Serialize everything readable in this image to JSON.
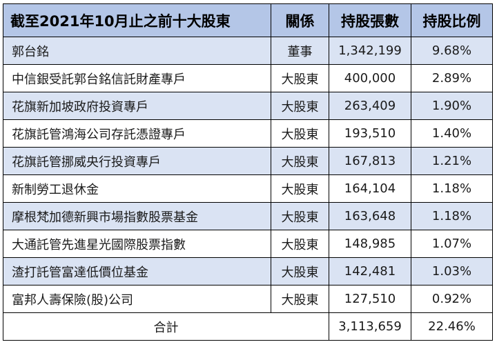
{
  "table": {
    "headers": {
      "name": "截至2021年10月止之前十大股東",
      "relation": "關係",
      "shares": "持股張數",
      "ratio": "持股比例"
    },
    "rows": [
      {
        "name": "郭台銘",
        "relation": "董事",
        "shares": "1,342,199",
        "ratio": "9.68%"
      },
      {
        "name": "中信銀受託郭台銘信託財產專戶",
        "relation": "大股東",
        "shares": "400,000",
        "ratio": "2.89%"
      },
      {
        "name": "花旗新加坡政府投資專戶",
        "relation": "大股東",
        "shares": "263,409",
        "ratio": "1.90%"
      },
      {
        "name": "花旗託管鴻海公司存託憑證專戶",
        "relation": "大股東",
        "shares": "193,510",
        "ratio": "1.40%"
      },
      {
        "name": "花旗託管挪威央行投資專戶",
        "relation": "大股東",
        "shares": "167,813",
        "ratio": "1.21%"
      },
      {
        "name": "新制勞工退休金",
        "relation": "大股東",
        "shares": "164,104",
        "ratio": "1.18%"
      },
      {
        "name": "摩根梵加德新興市場指數股票基金",
        "relation": "大股東",
        "shares": "163,648",
        "ratio": "1.18%"
      },
      {
        "name": "大通託管先進星光國際股票指數",
        "relation": "大股東",
        "shares": "148,985",
        "ratio": "1.07%"
      },
      {
        "name": "渣打託管富達低價位基金",
        "relation": "大股東",
        "shares": "142,481",
        "ratio": "1.03%"
      },
      {
        "name": "富邦人壽保險(股)公司",
        "relation": "大股東",
        "shares": "127,510",
        "ratio": "0.92%"
      }
    ],
    "total": {
      "label": "合計",
      "shares": "3,113,659",
      "ratio": "22.46%"
    }
  },
  "colors": {
    "header_bg": "#b4c6e7",
    "band_bg": "#dae3f3",
    "border": "#000000"
  }
}
